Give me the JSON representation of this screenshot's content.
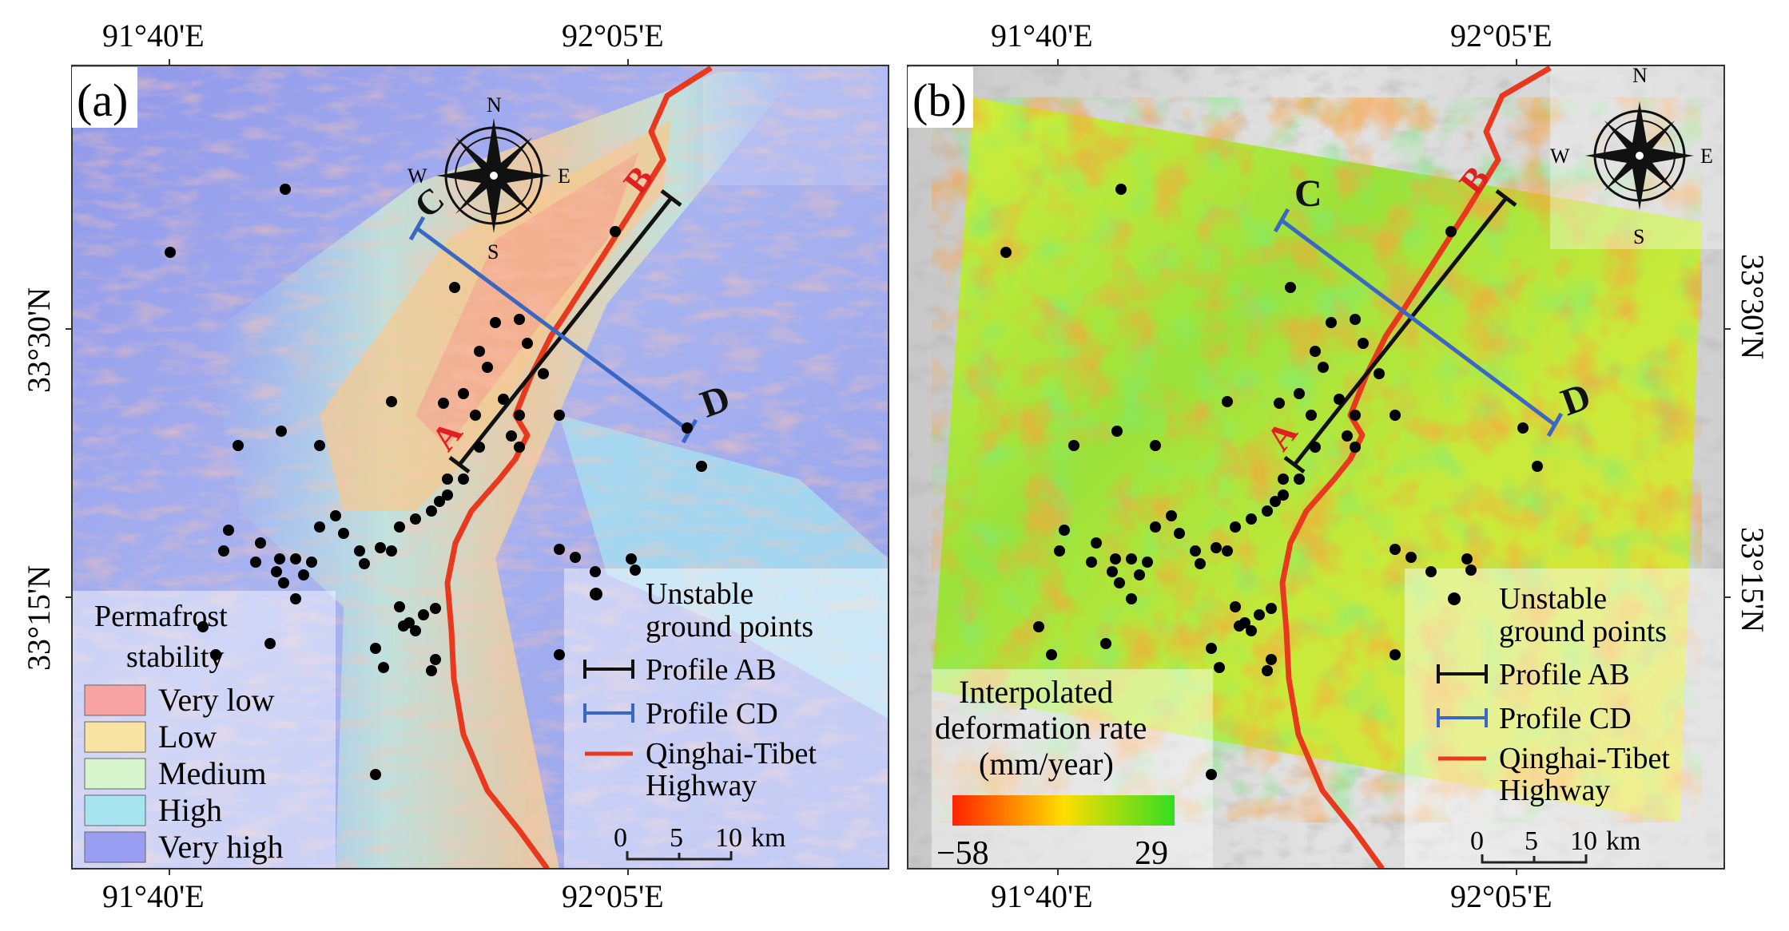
{
  "coords": {
    "lon_left": "91°40'E",
    "lon_right": "92°05'E",
    "lat_top": "33°30'N",
    "lat_bottom": "33°15'N"
  },
  "panel_a": {
    "label": "(a)",
    "stability_title_line1": "Permafrost",
    "stability_title_line2": "stability",
    "stability_classes": [
      {
        "label": "Very low",
        "color": "#f7a3a3"
      },
      {
        "label": "Low",
        "color": "#f9e3a3"
      },
      {
        "label": "Medium",
        "color": "#d6f5cc"
      },
      {
        "label": "High",
        "color": "#a6e4f0"
      },
      {
        "label": "Very high",
        "color": "#9a9ef2"
      }
    ]
  },
  "panel_b": {
    "label": "(b)",
    "colorbar_title_line1": "Interpolated",
    "colorbar_title_line2": "deformation rate",
    "colorbar_title_line3": "(mm/year)",
    "colorbar_min": "−58",
    "colorbar_max": "29",
    "colorbar_colors": [
      "#ff2200",
      "#ffdd00",
      "#33dd22"
    ]
  },
  "legend": {
    "points_line1": "Unstable",
    "points_line2": "ground points",
    "profile_ab": "Profile AB",
    "profile_cd": "Profile CD",
    "highway_line1": "Qinghai-Tibet",
    "highway_line2": "Highway"
  },
  "compass": {
    "n": "N",
    "s": "S",
    "e": "E",
    "w": "W"
  },
  "profile_labels": {
    "a": "A",
    "b": "B",
    "c": "C",
    "d": "D"
  },
  "scale_bar": {
    "ticks": [
      "0",
      "5",
      "10"
    ],
    "unit": "km"
  },
  "colors": {
    "profile_ab": "#111111",
    "profile_cd": "#3a66c4",
    "highway": "#e8391f",
    "points": "#000000"
  }
}
